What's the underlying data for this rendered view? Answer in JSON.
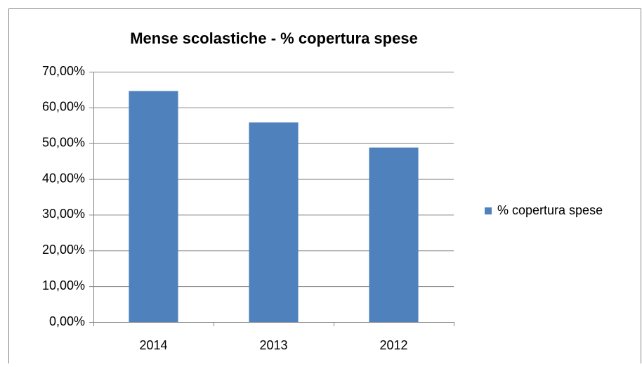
{
  "chart_data": {
    "type": "bar",
    "title": "Mense scolastiche - % copertura spese",
    "categories": [
      "2014",
      "2013",
      "2012"
    ],
    "series": [
      {
        "name": "% copertura spese",
        "color": "#4f81bd",
        "values": [
          64.6,
          55.8,
          48.8
        ]
      }
    ],
    "ylim": [
      0,
      70
    ],
    "yticks": [
      {
        "value": 0,
        "label": "0,00%"
      },
      {
        "value": 10,
        "label": "10,00%"
      },
      {
        "value": 20,
        "label": "20,00%"
      },
      {
        "value": 30,
        "label": "30,00%"
      },
      {
        "value": 40,
        "label": "40,00%"
      },
      {
        "value": 50,
        "label": "50,00%"
      },
      {
        "value": 60,
        "label": "60,00%"
      },
      {
        "value": 70,
        "label": "70,00%"
      }
    ],
    "grid": true,
    "legend": "right"
  }
}
